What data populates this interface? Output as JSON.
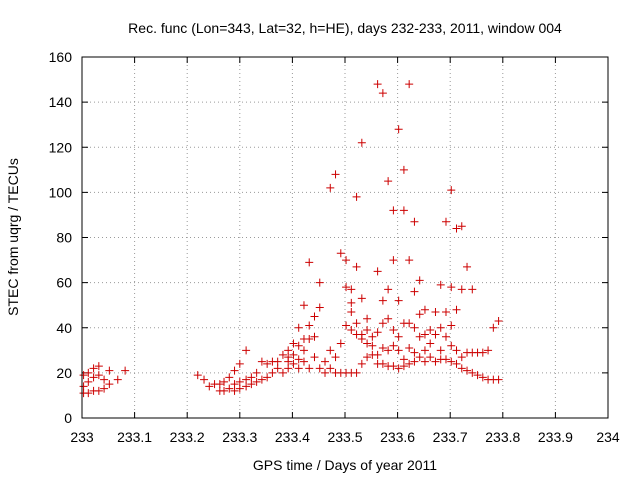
{
  "chart_data": {
    "type": "scatter",
    "title": "Rec. func (Lon=343, Lat=32, h=HE), days 232-233, 2011, window 004",
    "xlabel": "GPS time / Days of year 2011",
    "ylabel": "STEC from uqrg / TECUs",
    "xlim": [
      233,
      234
    ],
    "ylim": [
      0,
      160
    ],
    "x_ticks": [
      233,
      233.1,
      233.2,
      233.3,
      233.4,
      233.5,
      233.6,
      233.7,
      233.8,
      233.9,
      234
    ],
    "x_tick_labels": [
      "233",
      "233.1",
      "233.2",
      "233.3",
      "233.4",
      "233.5",
      "233.6",
      "233.7",
      "233.8",
      "233.9",
      "234"
    ],
    "y_ticks": [
      0,
      20,
      40,
      60,
      80,
      100,
      120,
      140,
      160
    ],
    "y_tick_labels": [
      "0",
      "20",
      "40",
      "60",
      "80",
      "100",
      "120",
      "140",
      "160"
    ],
    "grid": true,
    "marker": "+",
    "color": "#cc0000",
    "points": [
      [
        233.003,
        19
      ],
      [
        233.003,
        14
      ],
      [
        233.003,
        11
      ],
      [
        233.012,
        16
      ],
      [
        233.012,
        20
      ],
      [
        233.012,
        11
      ],
      [
        233.022,
        18
      ],
      [
        233.022,
        22
      ],
      [
        233.022,
        12
      ],
      [
        233.032,
        23
      ],
      [
        233.032,
        19
      ],
      [
        233.032,
        12
      ],
      [
        233.042,
        17
      ],
      [
        233.042,
        13
      ],
      [
        233.052,
        21
      ],
      [
        233.052,
        15
      ],
      [
        233.068,
        17
      ],
      [
        233.082,
        21
      ],
      [
        233.22,
        19
      ],
      [
        233.232,
        17
      ],
      [
        233.242,
        14
      ],
      [
        233.252,
        15
      ],
      [
        233.262,
        12
      ],
      [
        233.262,
        15
      ],
      [
        233.27,
        16
      ],
      [
        233.27,
        12
      ],
      [
        233.28,
        18
      ],
      [
        233.28,
        13
      ],
      [
        233.29,
        21
      ],
      [
        233.29,
        15
      ],
      [
        233.29,
        12
      ],
      [
        233.3,
        24
      ],
      [
        233.3,
        16
      ],
      [
        233.3,
        13
      ],
      [
        233.312,
        30
      ],
      [
        233.312,
        17
      ],
      [
        233.312,
        14
      ],
      [
        233.322,
        18
      ],
      [
        233.322,
        15
      ],
      [
        233.332,
        20
      ],
      [
        233.332,
        16
      ],
      [
        233.342,
        25
      ],
      [
        233.342,
        17
      ],
      [
        233.352,
        24
      ],
      [
        233.352,
        18
      ],
      [
        233.362,
        25
      ],
      [
        233.362,
        20
      ],
      [
        233.372,
        22
      ],
      [
        233.372,
        25
      ],
      [
        233.382,
        28
      ],
      [
        233.382,
        20
      ],
      [
        233.392,
        30
      ],
      [
        233.392,
        27
      ],
      [
        233.392,
        25
      ],
      [
        233.392,
        22
      ],
      [
        233.402,
        33
      ],
      [
        233.402,
        28
      ],
      [
        233.402,
        24
      ],
      [
        233.412,
        40
      ],
      [
        233.412,
        32
      ],
      [
        233.412,
        26
      ],
      [
        233.412,
        22
      ],
      [
        233.422,
        50
      ],
      [
        233.422,
        35
      ],
      [
        233.422,
        30
      ],
      [
        233.422,
        25
      ],
      [
        233.432,
        69
      ],
      [
        233.432,
        41
      ],
      [
        233.432,
        35
      ],
      [
        233.432,
        22
      ],
      [
        233.442,
        45
      ],
      [
        233.442,
        36
      ],
      [
        233.442,
        27
      ],
      [
        233.452,
        60
      ],
      [
        233.452,
        49
      ],
      [
        233.452,
        22
      ],
      [
        233.462,
        25
      ],
      [
        233.462,
        20
      ],
      [
        233.472,
        102
      ],
      [
        233.472,
        30
      ],
      [
        233.472,
        22
      ],
      [
        233.482,
        108
      ],
      [
        233.482,
        27
      ],
      [
        233.482,
        20
      ],
      [
        233.492,
        73
      ],
      [
        233.492,
        33
      ],
      [
        233.492,
        20
      ],
      [
        233.502,
        70
      ],
      [
        233.502,
        58
      ],
      [
        233.502,
        41
      ],
      [
        233.502,
        20
      ],
      [
        233.512,
        57
      ],
      [
        233.512,
        51
      ],
      [
        233.512,
        47
      ],
      [
        233.512,
        39
      ],
      [
        233.512,
        20
      ],
      [
        233.522,
        98
      ],
      [
        233.522,
        67
      ],
      [
        233.522,
        42
      ],
      [
        233.522,
        37
      ],
      [
        233.522,
        20
      ],
      [
        233.532,
        122
      ],
      [
        233.532,
        53
      ],
      [
        233.532,
        37
      ],
      [
        233.532,
        35
      ],
      [
        233.532,
        24
      ],
      [
        233.542,
        44
      ],
      [
        233.542,
        39
      ],
      [
        233.542,
        33
      ],
      [
        233.542,
        27
      ],
      [
        233.552,
        36
      ],
      [
        233.552,
        32
      ],
      [
        233.552,
        28
      ],
      [
        233.562,
        148
      ],
      [
        233.562,
        65
      ],
      [
        233.562,
        38
      ],
      [
        233.562,
        28
      ],
      [
        233.562,
        24
      ],
      [
        233.572,
        144
      ],
      [
        233.572,
        52
      ],
      [
        233.572,
        42
      ],
      [
        233.572,
        31
      ],
      [
        233.572,
        24
      ],
      [
        233.582,
        105
      ],
      [
        233.582,
        57
      ],
      [
        233.582,
        44
      ],
      [
        233.582,
        30
      ],
      [
        233.582,
        23
      ],
      [
        233.592,
        92
      ],
      [
        233.592,
        70
      ],
      [
        233.592,
        39
      ],
      [
        233.592,
        32
      ],
      [
        233.592,
        23
      ],
      [
        233.602,
        128
      ],
      [
        233.602,
        52
      ],
      [
        233.602,
        36
      ],
      [
        233.602,
        30
      ],
      [
        233.602,
        22
      ],
      [
        233.612,
        110
      ],
      [
        233.612,
        92
      ],
      [
        233.612,
        42
      ],
      [
        233.612,
        26
      ],
      [
        233.612,
        23
      ],
      [
        233.622,
        148
      ],
      [
        233.622,
        70
      ],
      [
        233.622,
        42
      ],
      [
        233.622,
        31
      ],
      [
        233.622,
        24
      ],
      [
        233.632,
        87
      ],
      [
        233.632,
        56
      ],
      [
        233.632,
        40
      ],
      [
        233.632,
        29
      ],
      [
        233.632,
        25
      ],
      [
        233.642,
        61
      ],
      [
        233.642,
        46
      ],
      [
        233.642,
        36
      ],
      [
        233.642,
        27
      ],
      [
        233.652,
        48
      ],
      [
        233.652,
        37
      ],
      [
        233.652,
        30
      ],
      [
        233.652,
        25
      ],
      [
        233.662,
        39
      ],
      [
        233.662,
        33
      ],
      [
        233.662,
        27
      ],
      [
        233.672,
        47
      ],
      [
        233.672,
        37
      ],
      [
        233.672,
        25
      ],
      [
        233.682,
        59
      ],
      [
        233.682,
        40
      ],
      [
        233.682,
        30
      ],
      [
        233.682,
        26
      ],
      [
        233.692,
        87
      ],
      [
        233.692,
        47
      ],
      [
        233.692,
        36
      ],
      [
        233.692,
        26
      ],
      [
        233.702,
        101
      ],
      [
        233.702,
        58
      ],
      [
        233.702,
        41
      ],
      [
        233.702,
        32
      ],
      [
        233.702,
        25
      ],
      [
        233.712,
        84
      ],
      [
        233.712,
        48
      ],
      [
        233.712,
        30
      ],
      [
        233.712,
        24
      ],
      [
        233.722,
        85
      ],
      [
        233.722,
        57
      ],
      [
        233.722,
        27
      ],
      [
        233.722,
        22
      ],
      [
        233.732,
        67
      ],
      [
        233.732,
        29
      ],
      [
        233.732,
        21
      ],
      [
        233.742,
        57
      ],
      [
        233.742,
        29
      ],
      [
        233.742,
        20
      ],
      [
        233.752,
        29
      ],
      [
        233.752,
        19
      ],
      [
        233.762,
        29
      ],
      [
        233.762,
        18
      ],
      [
        233.772,
        30
      ],
      [
        233.772,
        17
      ],
      [
        233.782,
        40
      ],
      [
        233.782,
        17
      ],
      [
        233.792,
        43
      ],
      [
        233.792,
        17
      ]
    ]
  }
}
